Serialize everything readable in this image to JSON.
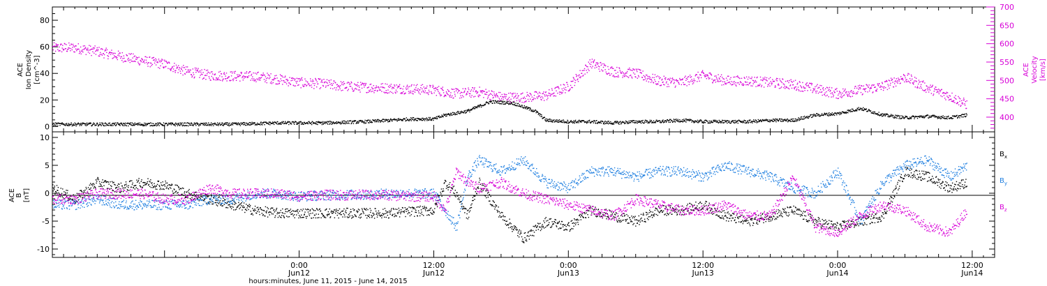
{
  "chart_data": [
    {
      "type": "scatter",
      "panel": "plasma",
      "x_range_hours": [
        -22,
        62
      ],
      "density_axis": {
        "label_lines": [
          "ACE",
          "Ion Density",
          "[cm^-3]"
        ],
        "ylim": [
          -4,
          90
        ],
        "ticks": [
          0,
          20,
          40,
          60,
          80
        ]
      },
      "velocity_axis": {
        "label_lines": [
          "ACE",
          "Velocity",
          "[km/s]"
        ],
        "ylim": [
          360,
          700
        ],
        "ticks": [
          400,
          450,
          500,
          550,
          600,
          650,
          700
        ],
        "color": "#d700d7"
      },
      "series": [
        {
          "axis": "velocity",
          "color": "#d700d7",
          "x": [
            -22,
            -20,
            -18,
            -16,
            -14,
            -12,
            -10,
            -8,
            -6,
            -4,
            -2,
            0,
            2,
            4,
            6,
            8,
            10,
            12,
            14,
            16,
            18,
            20,
            22,
            24,
            26,
            28,
            30,
            32,
            34,
            36,
            38,
            40,
            42,
            44,
            46,
            48,
            50,
            52,
            54,
            56,
            58,
            59.5
          ],
          "values": [
            590,
            590,
            580,
            567,
            555,
            545,
            525,
            515,
            513,
            512,
            505,
            495,
            492,
            485,
            482,
            480,
            478,
            475,
            465,
            470,
            455,
            455,
            460,
            485,
            548,
            525,
            520,
            500,
            495,
            515,
            500,
            500,
            495,
            490,
            478,
            465,
            475,
            485,
            510,
            480,
            458,
            435
          ]
        },
        {
          "axis": "density",
          "color": "#000000",
          "x": [
            -22,
            -18,
            -14,
            -10,
            -6,
            -2,
            2,
            6,
            8,
            10,
            12,
            13,
            15,
            17,
            19,
            21,
            22,
            24,
            26,
            28,
            30,
            32,
            34,
            36,
            38,
            40,
            42,
            44,
            46,
            48,
            50,
            52,
            54,
            56,
            58,
            59.5
          ],
          "values": [
            2,
            2,
            2,
            2,
            2,
            3,
            3,
            4,
            5,
            6,
            6,
            9,
            12,
            19,
            18,
            12,
            5,
            4,
            4,
            3,
            4,
            4,
            5,
            4,
            4,
            4,
            5,
            5,
            9,
            10,
            14,
            9,
            7,
            8,
            7,
            9
          ]
        }
      ]
    },
    {
      "type": "scatter",
      "panel": "magnetic",
      "x_range_hours": [
        -22,
        62
      ],
      "y_axis": {
        "label_lines": [
          "ACE",
          "B",
          "[nT]"
        ],
        "ylim": [
          -11.5,
          11
        ],
        "ticks": [
          -10,
          -5,
          0,
          5,
          10
        ]
      },
      "series": [
        {
          "legend_main": "B",
          "legend_sub": "x",
          "color": "#000000",
          "x": [
            -22,
            -20,
            -18,
            -16,
            -14,
            -12,
            -10,
            -8,
            -6,
            -4,
            -2,
            0,
            2,
            4,
            6,
            8,
            10,
            12,
            13,
            14,
            15,
            16,
            18,
            20,
            22,
            24,
            26,
            28,
            30,
            32,
            34,
            36,
            38,
            40,
            42,
            44,
            46,
            48,
            50,
            52,
            54,
            56,
            58,
            59.5
          ],
          "values": [
            1,
            -1,
            2,
            1,
            2,
            1.5,
            0,
            -1,
            -2,
            -3,
            -3.5,
            -3.5,
            -3.5,
            -3.5,
            -3.5,
            -3.5,
            -3.2,
            -3,
            2,
            0,
            -4,
            2,
            -4,
            -8,
            -5,
            -6,
            -3,
            -4,
            -5,
            -3,
            -3,
            -2,
            -4,
            -5,
            -4,
            -3,
            -5,
            -6,
            -5,
            -4,
            4,
            3,
            1,
            2
          ]
        },
        {
          "legend_main": "B",
          "legend_sub": "y",
          "color": "#1f7fe0",
          "x": [
            -22,
            -20,
            -18,
            -16,
            -14,
            -12,
            -10,
            -8,
            -6,
            -4,
            -2,
            0,
            2,
            4,
            6,
            8,
            10,
            12,
            13,
            14,
            15,
            16,
            18,
            20,
            22,
            24,
            26,
            28,
            30,
            32,
            34,
            36,
            38,
            40,
            42,
            44,
            46,
            48,
            50,
            52,
            54,
            56,
            58,
            59.5
          ],
          "values": [
            -2,
            -2,
            -1,
            -2,
            -2,
            -2,
            -2,
            -1,
            -1,
            0,
            0,
            -0.5,
            -0.3,
            -0.2,
            -0.2,
            0,
            0,
            0,
            -3,
            -6,
            3,
            6,
            4,
            6,
            2,
            1,
            4,
            4,
            3,
            4,
            4,
            3,
            5,
            4,
            3,
            1,
            0,
            4,
            -5,
            2,
            5,
            6,
            3,
            5
          ]
        },
        {
          "legend_main": "B",
          "legend_sub": "z",
          "color": "#d700d7",
          "x": [
            -22,
            -20,
            -18,
            -16,
            -14,
            -12,
            -10,
            -8,
            -6,
            -4,
            -2,
            0,
            2,
            4,
            6,
            8,
            10,
            12,
            13,
            14,
            15,
            16,
            18,
            20,
            22,
            24,
            26,
            28,
            30,
            32,
            34,
            36,
            38,
            40,
            42,
            44,
            46,
            48,
            50,
            52,
            54,
            56,
            58,
            59.5
          ],
          "values": [
            -1,
            -1,
            0,
            0,
            0,
            -1,
            -1,
            1,
            0,
            0,
            0,
            -0.5,
            -0.2,
            -0.3,
            -0.2,
            -0.3,
            -0.5,
            -0.5,
            -3,
            4,
            2,
            1,
            2,
            0,
            -1,
            -2,
            -3,
            -4,
            -1,
            -2,
            -3,
            -3,
            -2,
            -4,
            -4,
            3,
            -6,
            -7,
            -4,
            -2,
            -3,
            -6,
            -7,
            -3
          ]
        }
      ]
    }
  ],
  "x_axis": {
    "ticks": [
      {
        "hour": 0,
        "time": "0:00",
        "date": "Jun12"
      },
      {
        "hour": 12,
        "time": "12:00",
        "date": "Jun12"
      },
      {
        "hour": 24,
        "time": "0:00",
        "date": "Jun13"
      },
      {
        "hour": 36,
        "time": "12:00",
        "date": "Jun13"
      },
      {
        "hour": 48,
        "time": "0:00",
        "date": "Jun14"
      },
      {
        "hour": 60,
        "time": "12:00",
        "date": "Jun14"
      }
    ],
    "title": "hours:minutes, June 11, 2015 - June 14, 2015"
  }
}
